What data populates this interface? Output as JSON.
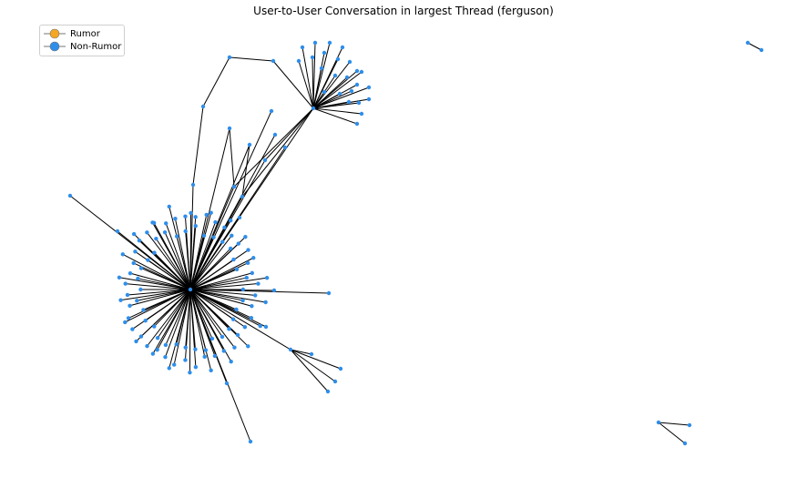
{
  "title": "User-to-User Conversation in largest Thread (ferguson)",
  "legend": [
    {
      "label": "Rumor",
      "color": "#f5a623"
    },
    {
      "label": "Non-Rumor",
      "color": "#2f8eea"
    }
  ],
  "colors": {
    "node": "#2f8eea",
    "edge": "#000000"
  }
}
